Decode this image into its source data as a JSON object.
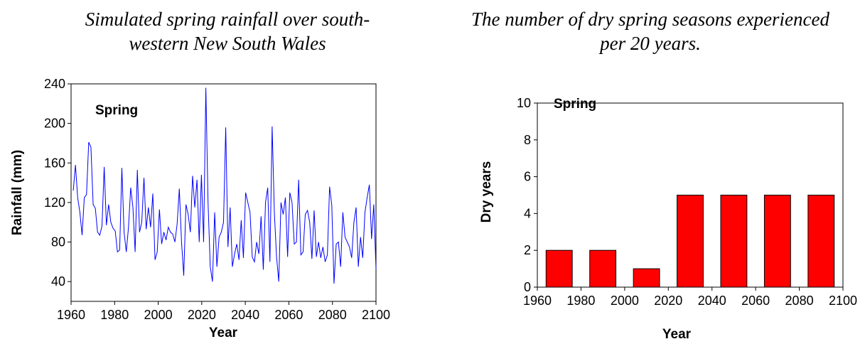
{
  "chart_data": [
    {
      "type": "line",
      "title": "Simulated spring rainfall over south-western New South Wales",
      "label": "Spring",
      "xlabel": "Year",
      "ylabel": "Rainfall (mm)",
      "xlim": [
        1960,
        2100
      ],
      "ylim": [
        20,
        240
      ],
      "xticks": [
        1960,
        1980,
        2000,
        2020,
        2040,
        2060,
        2080,
        2100
      ],
      "yticks": [
        40,
        80,
        120,
        160,
        200,
        240
      ],
      "color": "#0000ff",
      "x_start": 1961,
      "values": [
        132,
        158,
        125,
        110,
        87,
        125,
        128,
        181,
        176,
        118,
        114,
        90,
        87,
        96,
        156,
        97,
        118,
        100,
        94,
        91,
        70,
        72,
        155,
        90,
        70,
        95,
        135,
        115,
        70,
        153,
        90,
        100,
        145,
        93,
        115,
        95,
        129,
        62,
        70,
        113,
        78,
        90,
        82,
        95,
        90,
        88,
        80,
        98,
        134,
        80,
        46,
        118,
        108,
        90,
        147,
        115,
        143,
        80,
        148,
        80,
        236,
        120,
        55,
        40,
        110,
        55,
        85,
        90,
        100,
        196,
        75,
        115,
        55,
        68,
        78,
        62,
        102,
        64,
        130,
        120,
        110,
        65,
        60,
        80,
        68,
        106,
        52,
        120,
        135,
        60,
        197,
        110,
        65,
        40,
        120,
        108,
        125,
        65,
        130,
        120,
        78,
        80,
        143,
        67,
        70,
        108,
        112,
        100,
        63,
        112,
        65,
        80,
        64,
        75,
        60,
        67,
        136,
        117,
        38,
        78,
        80,
        55,
        110,
        85,
        80,
        75,
        64,
        100,
        115,
        55,
        85,
        64,
        110,
        125,
        138,
        83,
        118,
        53
      ],
      "x_end": 2100
    },
    {
      "type": "bar",
      "title": "The number of dry spring seasons experienced per 20 years.",
      "label": "Spring",
      "xlabel": "Year",
      "ylabel": "Dry years",
      "xlim": [
        1960,
        2100
      ],
      "ylim": [
        0,
        10
      ],
      "xticks": [
        1960,
        1980,
        2000,
        2020,
        2040,
        2060,
        2080,
        2100
      ],
      "yticks": [
        0,
        2,
        4,
        6,
        8,
        10
      ],
      "categories": [
        "1960-1980",
        "1980-2000",
        "2000-2020",
        "2020-2040",
        "2040-2060",
        "2060-2080",
        "2080-2100"
      ],
      "values": [
        2,
        2,
        1,
        5,
        5,
        5,
        5
      ],
      "color": "#ff0000"
    }
  ]
}
